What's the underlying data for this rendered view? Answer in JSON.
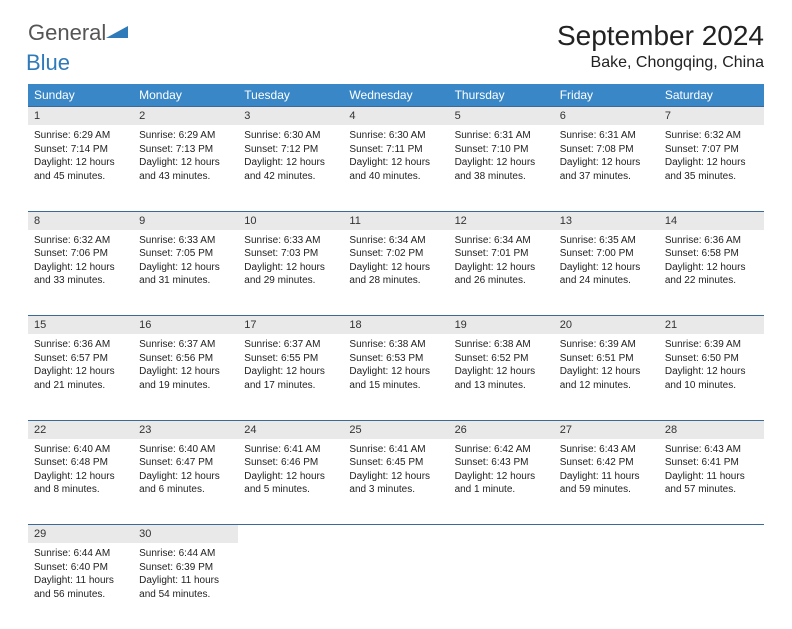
{
  "logo": {
    "text1": "General",
    "text2": "Blue"
  },
  "title": "September 2024",
  "location": "Bake, Chongqing, China",
  "colors": {
    "header_bg": "#3a87c7",
    "header_text": "#ffffff",
    "daynum_bg": "#e9e9e9",
    "border": "#3a6a95",
    "logo_blue": "#2f7ab8"
  },
  "weekdays": [
    "Sunday",
    "Monday",
    "Tuesday",
    "Wednesday",
    "Thursday",
    "Friday",
    "Saturday"
  ],
  "weeks": [
    {
      "nums": [
        "1",
        "2",
        "3",
        "4",
        "5",
        "6",
        "7"
      ],
      "cells": [
        {
          "sunrise": "Sunrise: 6:29 AM",
          "sunset": "Sunset: 7:14 PM",
          "day1": "Daylight: 12 hours",
          "day2": "and 45 minutes."
        },
        {
          "sunrise": "Sunrise: 6:29 AM",
          "sunset": "Sunset: 7:13 PM",
          "day1": "Daylight: 12 hours",
          "day2": "and 43 minutes."
        },
        {
          "sunrise": "Sunrise: 6:30 AM",
          "sunset": "Sunset: 7:12 PM",
          "day1": "Daylight: 12 hours",
          "day2": "and 42 minutes."
        },
        {
          "sunrise": "Sunrise: 6:30 AM",
          "sunset": "Sunset: 7:11 PM",
          "day1": "Daylight: 12 hours",
          "day2": "and 40 minutes."
        },
        {
          "sunrise": "Sunrise: 6:31 AM",
          "sunset": "Sunset: 7:10 PM",
          "day1": "Daylight: 12 hours",
          "day2": "and 38 minutes."
        },
        {
          "sunrise": "Sunrise: 6:31 AM",
          "sunset": "Sunset: 7:08 PM",
          "day1": "Daylight: 12 hours",
          "day2": "and 37 minutes."
        },
        {
          "sunrise": "Sunrise: 6:32 AM",
          "sunset": "Sunset: 7:07 PM",
          "day1": "Daylight: 12 hours",
          "day2": "and 35 minutes."
        }
      ]
    },
    {
      "nums": [
        "8",
        "9",
        "10",
        "11",
        "12",
        "13",
        "14"
      ],
      "cells": [
        {
          "sunrise": "Sunrise: 6:32 AM",
          "sunset": "Sunset: 7:06 PM",
          "day1": "Daylight: 12 hours",
          "day2": "and 33 minutes."
        },
        {
          "sunrise": "Sunrise: 6:33 AM",
          "sunset": "Sunset: 7:05 PM",
          "day1": "Daylight: 12 hours",
          "day2": "and 31 minutes."
        },
        {
          "sunrise": "Sunrise: 6:33 AM",
          "sunset": "Sunset: 7:03 PM",
          "day1": "Daylight: 12 hours",
          "day2": "and 29 minutes."
        },
        {
          "sunrise": "Sunrise: 6:34 AM",
          "sunset": "Sunset: 7:02 PM",
          "day1": "Daylight: 12 hours",
          "day2": "and 28 minutes."
        },
        {
          "sunrise": "Sunrise: 6:34 AM",
          "sunset": "Sunset: 7:01 PM",
          "day1": "Daylight: 12 hours",
          "day2": "and 26 minutes."
        },
        {
          "sunrise": "Sunrise: 6:35 AM",
          "sunset": "Sunset: 7:00 PM",
          "day1": "Daylight: 12 hours",
          "day2": "and 24 minutes."
        },
        {
          "sunrise": "Sunrise: 6:36 AM",
          "sunset": "Sunset: 6:58 PM",
          "day1": "Daylight: 12 hours",
          "day2": "and 22 minutes."
        }
      ]
    },
    {
      "nums": [
        "15",
        "16",
        "17",
        "18",
        "19",
        "20",
        "21"
      ],
      "cells": [
        {
          "sunrise": "Sunrise: 6:36 AM",
          "sunset": "Sunset: 6:57 PM",
          "day1": "Daylight: 12 hours",
          "day2": "and 21 minutes."
        },
        {
          "sunrise": "Sunrise: 6:37 AM",
          "sunset": "Sunset: 6:56 PM",
          "day1": "Daylight: 12 hours",
          "day2": "and 19 minutes."
        },
        {
          "sunrise": "Sunrise: 6:37 AM",
          "sunset": "Sunset: 6:55 PM",
          "day1": "Daylight: 12 hours",
          "day2": "and 17 minutes."
        },
        {
          "sunrise": "Sunrise: 6:38 AM",
          "sunset": "Sunset: 6:53 PM",
          "day1": "Daylight: 12 hours",
          "day2": "and 15 minutes."
        },
        {
          "sunrise": "Sunrise: 6:38 AM",
          "sunset": "Sunset: 6:52 PM",
          "day1": "Daylight: 12 hours",
          "day2": "and 13 minutes."
        },
        {
          "sunrise": "Sunrise: 6:39 AM",
          "sunset": "Sunset: 6:51 PM",
          "day1": "Daylight: 12 hours",
          "day2": "and 12 minutes."
        },
        {
          "sunrise": "Sunrise: 6:39 AM",
          "sunset": "Sunset: 6:50 PM",
          "day1": "Daylight: 12 hours",
          "day2": "and 10 minutes."
        }
      ]
    },
    {
      "nums": [
        "22",
        "23",
        "24",
        "25",
        "26",
        "27",
        "28"
      ],
      "cells": [
        {
          "sunrise": "Sunrise: 6:40 AM",
          "sunset": "Sunset: 6:48 PM",
          "day1": "Daylight: 12 hours",
          "day2": "and 8 minutes."
        },
        {
          "sunrise": "Sunrise: 6:40 AM",
          "sunset": "Sunset: 6:47 PM",
          "day1": "Daylight: 12 hours",
          "day2": "and 6 minutes."
        },
        {
          "sunrise": "Sunrise: 6:41 AM",
          "sunset": "Sunset: 6:46 PM",
          "day1": "Daylight: 12 hours",
          "day2": "and 5 minutes."
        },
        {
          "sunrise": "Sunrise: 6:41 AM",
          "sunset": "Sunset: 6:45 PM",
          "day1": "Daylight: 12 hours",
          "day2": "and 3 minutes."
        },
        {
          "sunrise": "Sunrise: 6:42 AM",
          "sunset": "Sunset: 6:43 PM",
          "day1": "Daylight: 12 hours",
          "day2": "and 1 minute."
        },
        {
          "sunrise": "Sunrise: 6:43 AM",
          "sunset": "Sunset: 6:42 PM",
          "day1": "Daylight: 11 hours",
          "day2": "and 59 minutes."
        },
        {
          "sunrise": "Sunrise: 6:43 AM",
          "sunset": "Sunset: 6:41 PM",
          "day1": "Daylight: 11 hours",
          "day2": "and 57 minutes."
        }
      ]
    },
    {
      "nums": [
        "29",
        "30",
        "",
        "",
        "",
        "",
        ""
      ],
      "cells": [
        {
          "sunrise": "Sunrise: 6:44 AM",
          "sunset": "Sunset: 6:40 PM",
          "day1": "Daylight: 11 hours",
          "day2": "and 56 minutes."
        },
        {
          "sunrise": "Sunrise: 6:44 AM",
          "sunset": "Sunset: 6:39 PM",
          "day1": "Daylight: 11 hours",
          "day2": "and 54 minutes."
        },
        null,
        null,
        null,
        null,
        null
      ]
    }
  ]
}
